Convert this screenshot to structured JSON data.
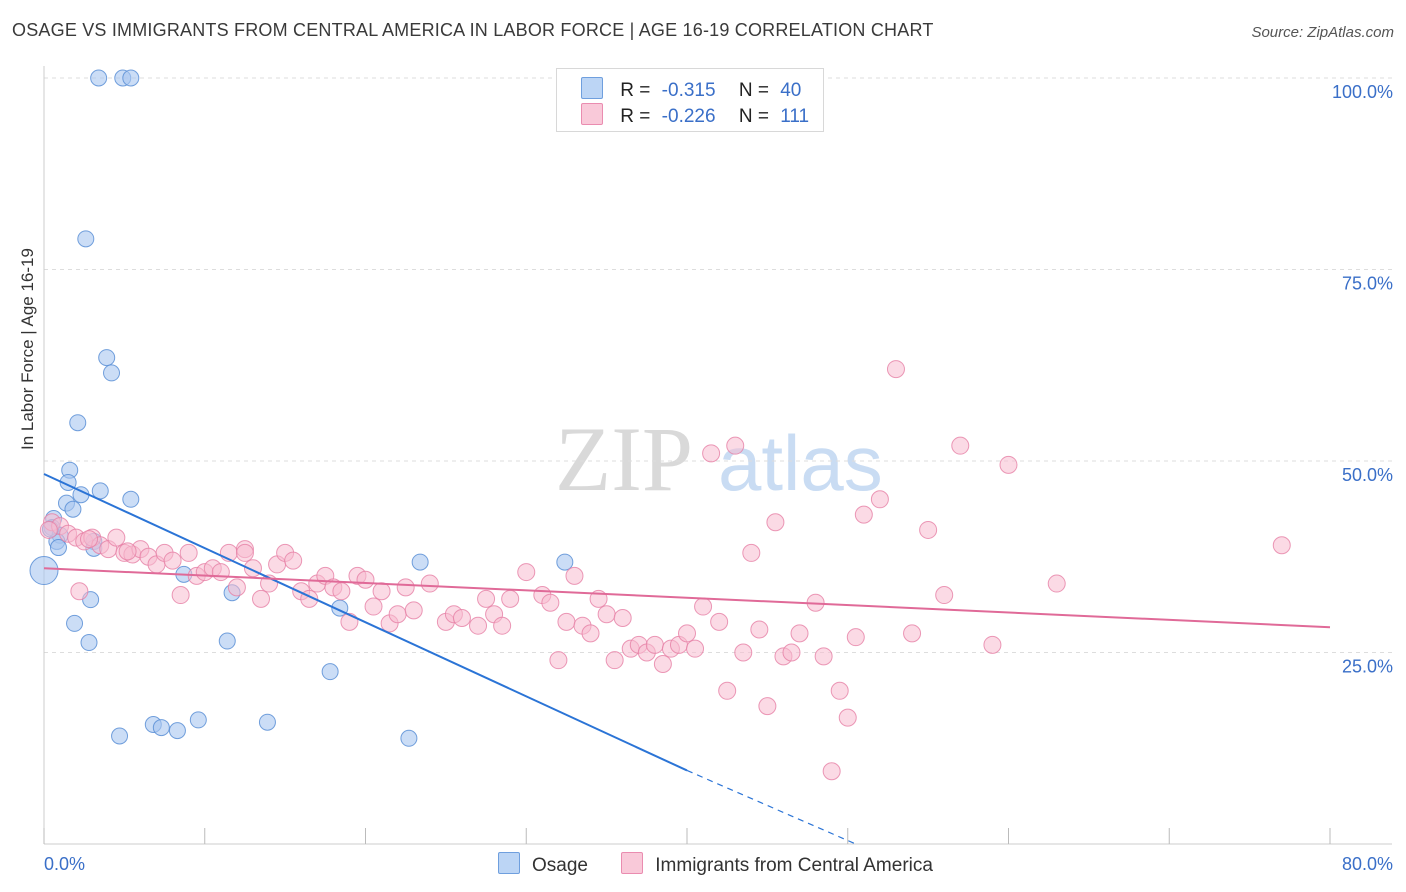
{
  "title": "OSAGE VS IMMIGRANTS FROM CENTRAL AMERICA IN LABOR FORCE | AGE 16-19 CORRELATION CHART",
  "source": "Source: ZipAtlas.com",
  "watermark": {
    "zip": "ZIP",
    "atlas": "atlas"
  },
  "colors": {
    "osage_fill": "#a9c7f0",
    "osage_stroke": "#5b8fd6",
    "osage_line": "#2b74d6",
    "central_fill": "#f7bcd0",
    "central_stroke": "#e680a5",
    "central_line": "#e06a98",
    "axis_text": "#3a6fc8",
    "grid": "#dddddd"
  },
  "legend": {
    "rows": [
      {
        "r_label": "R =",
        "r_value": "-0.315",
        "n_label": "N =",
        "n_value": "40"
      },
      {
        "r_label": "R =",
        "r_value": "-0.226",
        "n_label": "N =",
        "n_value": "111"
      }
    ]
  },
  "bottom_legend": {
    "osage": "Osage",
    "central": "Immigrants from Central America"
  },
  "chart_data": {
    "type": "scatter",
    "title": "OSAGE VS IMMIGRANTS FROM CENTRAL AMERICA IN LABOR FORCE | AGE 16-19 CORRELATION CHART",
    "xlabel": "",
    "ylabel": "In Labor Force | Age 16-19",
    "xlim": [
      0,
      80
    ],
    "ylim": [
      0,
      100
    ],
    "x_tick_labels": {
      "min": "0.0%",
      "max": "80.0%"
    },
    "y_ticks": [
      {
        "value": 25,
        "label": "25.0%"
      },
      {
        "value": 50,
        "label": "50.0%"
      },
      {
        "value": 75,
        "label": "75.0%"
      },
      {
        "value": 100,
        "label": "100.0%"
      }
    ],
    "grid": true,
    "series": [
      {
        "name": "Osage",
        "r": -0.315,
        "n": 40,
        "trend": {
          "x": [
            0,
            40
          ],
          "y": [
            48.3,
            9.6
          ],
          "dashed_to": [
            50.5,
            -0.6
          ]
        },
        "points": [
          [
            3.4,
            100
          ],
          [
            4.9,
            100
          ],
          [
            5.4,
            100
          ],
          [
            2.6,
            79
          ],
          [
            3.9,
            63.5
          ],
          [
            4.2,
            61.5
          ],
          [
            2.1,
            55
          ],
          [
            1.6,
            48.8
          ],
          [
            1.5,
            47.2
          ],
          [
            2.3,
            45.6
          ],
          [
            1.4,
            44.5
          ],
          [
            1.8,
            43.7
          ],
          [
            0.6,
            42.5
          ],
          [
            3.5,
            46.1
          ],
          [
            5.4,
            45
          ],
          [
            0.5,
            41.3
          ],
          [
            1,
            40.3
          ],
          [
            0.8,
            39.5
          ],
          [
            3.1,
            39.5
          ],
          [
            0.9,
            38.7
          ],
          [
            3.1,
            38.6
          ],
          [
            0,
            35.7
          ],
          [
            8.7,
            35.2
          ],
          [
            23.4,
            36.8
          ],
          [
            32.4,
            36.8
          ],
          [
            11.7,
            32.8
          ],
          [
            2.9,
            31.9
          ],
          [
            18.4,
            30.8
          ],
          [
            1.9,
            28.8
          ],
          [
            2.8,
            26.3
          ],
          [
            11.4,
            26.5
          ],
          [
            17.8,
            22.5
          ],
          [
            6.8,
            15.6
          ],
          [
            7.3,
            15.2
          ],
          [
            8.3,
            14.8
          ],
          [
            9.6,
            16.2
          ],
          [
            4.7,
            14.1
          ],
          [
            13.9,
            15.9
          ],
          [
            22.7,
            13.8
          ],
          [
            0.4,
            41.1
          ]
        ]
      },
      {
        "name": "Immigrants from Central America",
        "r": -0.226,
        "n": 111,
        "trend": {
          "x": [
            0,
            80
          ],
          "y": [
            36,
            28.3
          ]
        },
        "points": [
          [
            0.5,
            42
          ],
          [
            1,
            41.5
          ],
          [
            1.5,
            40.5
          ],
          [
            2,
            40
          ],
          [
            2.5,
            39.5
          ],
          [
            3,
            40
          ],
          [
            3.5,
            39
          ],
          [
            4,
            38.5
          ],
          [
            4.5,
            40
          ],
          [
            5,
            38
          ],
          [
            5.5,
            37.8
          ],
          [
            6,
            38.5
          ],
          [
            6.5,
            37.5
          ],
          [
            7,
            36.5
          ],
          [
            7.5,
            38
          ],
          [
            8,
            37
          ],
          [
            8.5,
            32.5
          ],
          [
            9,
            38
          ],
          [
            9.5,
            35
          ],
          [
            10,
            35.5
          ],
          [
            10.5,
            36
          ],
          [
            11,
            35.5
          ],
          [
            11.5,
            38
          ],
          [
            12,
            33.5
          ],
          [
            12.5,
            38.5
          ],
          [
            13,
            36
          ],
          [
            13.5,
            32
          ],
          [
            14,
            34
          ],
          [
            14.5,
            36.5
          ],
          [
            15,
            38
          ],
          [
            15.5,
            37
          ],
          [
            16,
            33
          ],
          [
            16.5,
            32
          ],
          [
            17,
            34
          ],
          [
            17.5,
            35
          ],
          [
            18,
            33.5
          ],
          [
            18.5,
            33
          ],
          [
            19,
            29
          ],
          [
            19.5,
            35
          ],
          [
            20,
            34.5
          ],
          [
            20.5,
            31
          ],
          [
            21,
            33
          ],
          [
            21.5,
            28.8
          ],
          [
            22,
            30
          ],
          [
            22.5,
            33.5
          ],
          [
            23,
            30.5
          ],
          [
            24,
            34
          ],
          [
            25,
            29
          ],
          [
            25.5,
            30
          ],
          [
            26,
            29.5
          ],
          [
            27,
            28.5
          ],
          [
            27.5,
            32
          ],
          [
            28,
            30
          ],
          [
            28.5,
            28.5
          ],
          [
            29,
            32
          ],
          [
            30,
            35.5
          ],
          [
            31,
            32.5
          ],
          [
            31.5,
            31.5
          ],
          [
            32,
            24
          ],
          [
            32.5,
            29
          ],
          [
            33,
            35
          ],
          [
            33.5,
            28.5
          ],
          [
            34,
            27.5
          ],
          [
            34.5,
            32
          ],
          [
            35,
            30
          ],
          [
            35.5,
            24
          ],
          [
            36,
            29.5
          ],
          [
            36.5,
            25.5
          ],
          [
            37,
            26
          ],
          [
            37.5,
            25
          ],
          [
            38,
            26
          ],
          [
            38.5,
            23.5
          ],
          [
            39,
            25.5
          ],
          [
            39.5,
            26
          ],
          [
            40,
            27.5
          ],
          [
            40.5,
            25.5
          ],
          [
            41,
            31
          ],
          [
            41.5,
            51
          ],
          [
            42,
            29
          ],
          [
            42.5,
            20
          ],
          [
            43,
            52
          ],
          [
            43.5,
            25
          ],
          [
            44,
            38
          ],
          [
            44.5,
            28
          ],
          [
            45,
            18
          ],
          [
            45.5,
            42
          ],
          [
            46,
            24.5
          ],
          [
            46.5,
            25
          ],
          [
            47,
            27.5
          ],
          [
            48,
            31.5
          ],
          [
            48.5,
            24.5
          ],
          [
            49,
            9.5
          ],
          [
            49.5,
            20
          ],
          [
            50,
            16.5
          ],
          [
            50.5,
            27
          ],
          [
            51,
            43
          ],
          [
            52,
            45
          ],
          [
            53,
            62
          ],
          [
            54,
            27.5
          ],
          [
            55,
            41
          ],
          [
            56,
            32.5
          ],
          [
            57,
            52
          ],
          [
            59,
            26
          ],
          [
            60,
            49.5
          ],
          [
            63,
            34
          ],
          [
            77,
            39
          ],
          [
            2.2,
            33
          ],
          [
            12.5,
            38
          ],
          [
            0.3,
            41
          ],
          [
            2.8,
            39.8
          ],
          [
            5.2,
            38.2
          ]
        ]
      }
    ]
  }
}
